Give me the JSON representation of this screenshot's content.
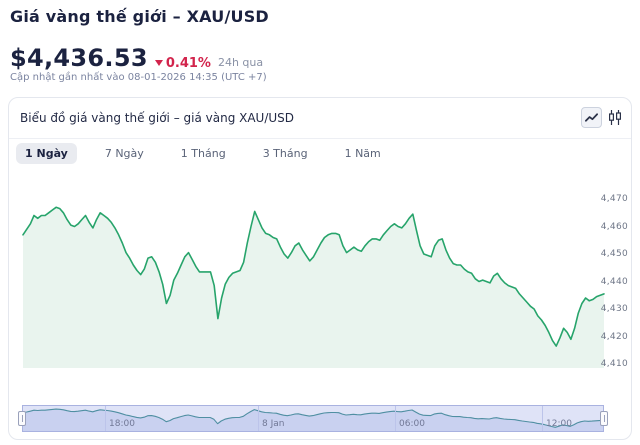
{
  "page": {
    "title": "Giá vàng thế giới – XAU/USD",
    "price": "$4,436.53",
    "change_percent": "0.41%",
    "change_direction": "down",
    "change_period": "24h qua",
    "updated": "Cập nhật gần nhất vào 08-01-2026 14:35 (UTC +7)"
  },
  "card": {
    "subtitle": "Biểu đồ giá vàng thế giới – giá vàng XAU/USD",
    "chart_type_icons": [
      "line-chart",
      "candlestick-chart"
    ]
  },
  "tabs": {
    "items": [
      {
        "label": "1 Ngày",
        "active": true
      },
      {
        "label": "7 Ngày",
        "active": false
      },
      {
        "label": "1 Tháng",
        "active": false
      },
      {
        "label": "3 Tháng",
        "active": false
      },
      {
        "label": "1 Năm",
        "active": false
      }
    ]
  },
  "chart_data": {
    "type": "area",
    "title": "Biểu đồ giá vàng thế giới – giá vàng XAU/USD",
    "legend": "none",
    "grid": "off",
    "y_axis_side": "right",
    "y_ticks": [
      "4,470",
      "4,460",
      "4,450",
      "4,440",
      "4,430",
      "4,420",
      "4,410"
    ],
    "ylim": [
      4405,
      4472
    ],
    "x_ticks": [
      "18:00",
      "8 Jan",
      "06:00",
      "12:00"
    ],
    "series": [
      {
        "name": "XAU/USD",
        "values": [
          4457,
          4459,
          4461,
          4464,
          4463,
          4464,
          4464,
          4465,
          4466,
          4467,
          4466.5,
          4465,
          4462.5,
          4460.5,
          4460,
          4461,
          4462.5,
          4464,
          4461.5,
          4459.5,
          4462.5,
          4465,
          4464,
          4463,
          4461.5,
          4459.5,
          4457,
          4454,
          4450.5,
          4448.5,
          4446,
          4444,
          4442.5,
          4444.5,
          4448.5,
          4449,
          4447,
          4443.5,
          4439,
          4432,
          4435,
          4440.5,
          4443,
          4446,
          4449,
          4450.5,
          4448,
          4445.5,
          4443.5,
          4443.5,
          4443.5,
          4443.5,
          4438.5,
          4426.5,
          4434,
          4439,
          4441.5,
          4443,
          4443.5,
          4444,
          4447,
          4454,
          4460,
          4465.5,
          4462.5,
          4459.5,
          4457.5,
          4457,
          4456,
          4455.5,
          4452.5,
          4450,
          4448.5,
          4450.5,
          4453,
          4454,
          4451.5,
          4449.5,
          4447.5,
          4449,
          4451.5,
          4454,
          4456,
          4457,
          4457.5,
          4457.5,
          4457,
          4453,
          4450.5,
          4451.5,
          4452.5,
          4451.5,
          4451,
          4453,
          4454.5,
          4455.5,
          4455.5,
          4455,
          4457,
          4458.5,
          4460,
          4461,
          4460,
          4459.5,
          4461,
          4463,
          4464.5,
          4458.5,
          4453,
          4450,
          4449.5,
          4449,
          4453,
          4455,
          4455.5,
          4451.5,
          4448.5,
          4446.5,
          4446,
          4446,
          4444.5,
          4443.5,
          4443,
          4441,
          4440,
          4440.5,
          4440,
          4439.5,
          4442,
          4443,
          4441,
          4439.5,
          4438.5,
          4438,
          4437.5,
          4435.5,
          4434,
          4432.5,
          4431,
          4430,
          4427.5,
          4426,
          4424,
          4421.5,
          4418.5,
          4416.5,
          4419.5,
          4423,
          4421.5,
          4419,
          4423,
          4428.5,
          4432,
          4434,
          4433,
          4433.5,
          4434.5,
          4435,
          4435.5
        ]
      }
    ],
    "colors": {
      "line": "#27a46b",
      "fill": "#e9f4ee",
      "nav_line": "#4f8fa2",
      "nav_fill": "#c9d1f0",
      "nav_bg": "#dfe3f7",
      "accent_down": "#d2244c"
    }
  }
}
